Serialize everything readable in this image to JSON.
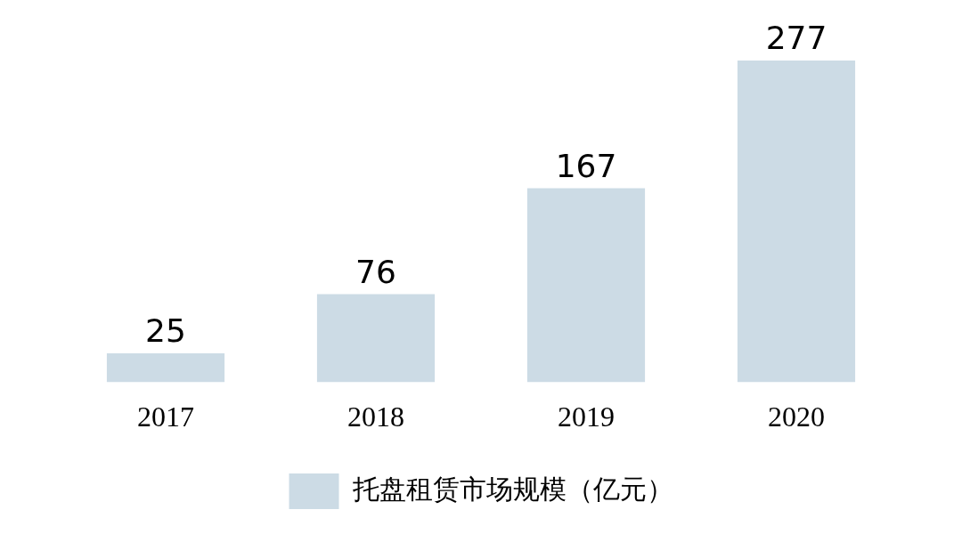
{
  "chart_data": {
    "type": "bar",
    "categories": [
      "2017",
      "2018",
      "2019",
      "2020"
    ],
    "series": [
      {
        "name": "托盘租赁市场规模（亿元）",
        "color": "#ccdbe5",
        "values": [
          25,
          76,
          167,
          277
        ]
      }
    ],
    "data_labels": true,
    "legend": "bottom",
    "grid": false
  }
}
